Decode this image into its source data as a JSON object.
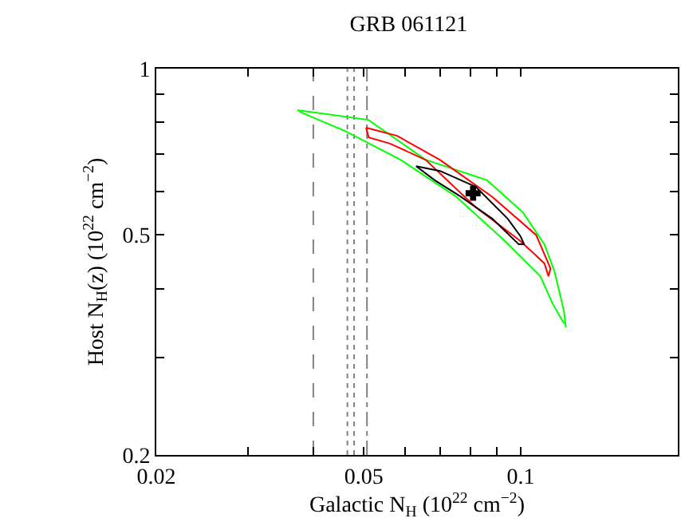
{
  "chart_data": {
    "type": "line",
    "title": "GRB 061121",
    "xlabel": "Galactic N$_{H}$ (10$^{22}$ cm$^{−2}$)",
    "ylabel": "Host N$_{H}$(z) (10$^{22}$ cm$^{−2}$)",
    "log": "xy",
    "xlim": [
      0.02,
      0.2
    ],
    "ylim": [
      0.2,
      1
    ],
    "xticks": [
      0.02,
      {
        "value": 0.03,
        "label": null
      },
      {
        "value": 0.04,
        "label": null
      },
      0.05,
      {
        "value": 0.06,
        "label": null
      },
      {
        "value": 0.07,
        "label": null
      },
      {
        "value": 0.08,
        "label": null
      },
      {
        "value": 0.09,
        "label": null
      },
      0.1
    ],
    "yticks": [
      0.2,
      {
        "value": 0.3,
        "label": null
      },
      {
        "value": 0.4,
        "label": null
      },
      0.5,
      {
        "value": 0.6,
        "label": null
      },
      {
        "value": 0.7,
        "label": null
      },
      {
        "value": 0.8,
        "label": null
      },
      {
        "value": 0.9,
        "label": null
      },
      1
    ],
    "grid": false,
    "marker": "none",
    "line_style": "solid",
    "series": [
      {
        "color": "#00ff00",
        "x": [
          0.0373,
          0.051,
          0.0657,
          0.0862,
          0.101,
          0.111,
          0.116,
          0.121,
          0.122
        ],
        "values": [
          0.841,
          0.808,
          0.684,
          0.628,
          0.549,
          0.481,
          0.43,
          0.364,
          0.34
        ]
      },
      {
        "color": "#00ff00",
        "x": [
          0.0376,
          0.046,
          0.0588,
          0.0751,
          0.0927,
          0.109,
          0.115,
          0.121
        ],
        "values": [
          0.836,
          0.771,
          0.684,
          0.587,
          0.49,
          0.421,
          0.376,
          0.346
        ]
      },
      {
        "color": "#ff0000",
        "x": [
          0.0505,
          0.0579,
          0.0699,
          0.088,
          0.107,
          0.114,
          0.113
        ],
        "values": [
          0.782,
          0.756,
          0.684,
          0.587,
          0.5,
          0.435,
          0.421
        ]
      },
      {
        "color": "#ff0000",
        "x": [
          0.0505,
          0.0511,
          0.0561,
          0.0657,
          0.082,
          0.0992,
          0.107,
          0.111,
          0.113
        ],
        "values": [
          0.782,
          0.751,
          0.732,
          0.684,
          0.561,
          0.49,
          0.459,
          0.444,
          0.421
        ]
      },
      {
        "color": "#000000",
        "x": [
          0.063,
          0.07,
          0.082,
          0.0944,
          0.0999,
          0.1015
        ],
        "values": [
          0.666,
          0.653,
          0.611,
          0.535,
          0.497,
          0.481
        ]
      },
      {
        "color": "#000000",
        "x": [
          0.063,
          0.0684,
          0.0766,
          0.0882,
          0.0991,
          0.1015
        ],
        "values": [
          0.666,
          0.628,
          0.587,
          0.535,
          0.481,
          0.481
        ]
      },
      {
        "type": "scatter",
        "marker": "cross",
        "color": "#000000",
        "x": [
          0.081
        ],
        "values": [
          0.595
        ]
      }
    ],
    "ref_lines": [
      {
        "axis": "x",
        "value": 0.04,
        "color": "#808080",
        "line_style": "dashed"
      },
      {
        "axis": "x",
        "value": 0.0465,
        "color": "#808080",
        "line_style": "dotted"
      },
      {
        "axis": "x",
        "value": 0.0479,
        "color": "#808080",
        "line_style": "dotted"
      },
      {
        "axis": "x",
        "value": 0.0507,
        "color": "#808080",
        "line_style": "dashdot"
      }
    ]
  }
}
